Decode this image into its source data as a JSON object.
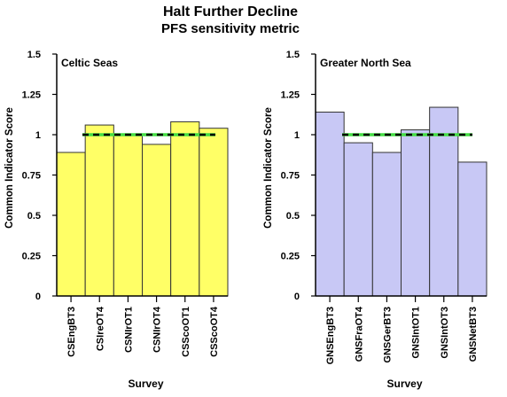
{
  "figure": {
    "title": "Halt Further Decline",
    "subtitle": "PFS sensitivity metric"
  },
  "chart_data": [
    {
      "type": "bar",
      "panel_label": "Celtic Seas",
      "categories": [
        "CSEngBT3",
        "CSIreOT4",
        "CSNIrOT1",
        "CSNIrOT4",
        "CSScoOT1",
        "CSScoOT4"
      ],
      "values": [
        0.89,
        1.06,
        1.0,
        0.94,
        1.08,
        1.04
      ],
      "xlabel": "Survey",
      "ylabel": "Common Indicator Score",
      "ylim": [
        0,
        1.5
      ],
      "yticks": [
        0,
        0.25,
        0.5,
        0.75,
        1,
        1.25,
        1.5
      ],
      "ytick_labels": [
        "0",
        "0.25",
        "0.5",
        "0.75",
        "1",
        "1.25",
        "1.5"
      ],
      "reference_lines": [
        {
          "style": "solid",
          "color": "#44dd44",
          "value": 1.0
        },
        {
          "style": "dashed",
          "color": "#000000",
          "value": 1.0
        }
      ],
      "bar_color": "#ffff66",
      "bar_edge_color": "#333333",
      "grid": false
    },
    {
      "type": "bar",
      "panel_label": "Greater North Sea",
      "categories": [
        "GNSEngBT3",
        "GNSFraOT4",
        "GNSGerBT3",
        "GNSIntOT1",
        "GNSIntOT3",
        "GNSNetBT3"
      ],
      "values": [
        1.14,
        0.95,
        0.89,
        1.03,
        1.17,
        0.83
      ],
      "xlabel": "Survey",
      "ylabel": "Common Indicator Score",
      "ylim": [
        0,
        1.5
      ],
      "yticks": [
        0,
        0.25,
        0.5,
        0.75,
        1,
        1.25,
        1.5
      ],
      "ytick_labels": [
        "0",
        "0.25",
        "0.5",
        "0.75",
        "1",
        "1.25",
        "1.5"
      ],
      "reference_lines": [
        {
          "style": "solid",
          "color": "#44dd44",
          "value": 1.0
        },
        {
          "style": "dashed",
          "color": "#000000",
          "value": 1.0
        }
      ],
      "bar_color": "#c8c8f5",
      "bar_edge_color": "#333333",
      "grid": false
    }
  ]
}
